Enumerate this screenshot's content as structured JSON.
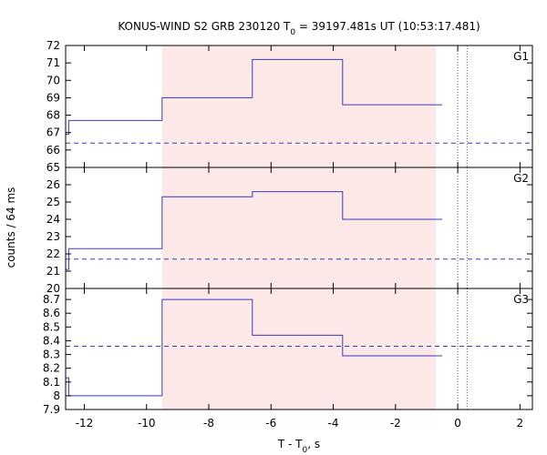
{
  "chart_data": {
    "type": "line",
    "title": "KONUS-WIND S2 GRB 230120 T",
    "title_sub": "0",
    "title_rest": " = 39197.481s UT (10:53:17.481)",
    "xlabel_main": "T - T",
    "xlabel_sub": "0",
    "xlabel_rest": ", s",
    "ylabel": "counts / 64 ms",
    "xlim": [
      -12.6,
      2.4
    ],
    "x_ticks": [
      -12,
      -10,
      -8,
      -6,
      -4,
      -2,
      0,
      2
    ],
    "x_tick_labels": [
      "-12",
      "-10",
      "-8",
      "-6",
      "-4",
      "-2",
      "0",
      "2"
    ],
    "shaded_region": [
      -9.5,
      -0.7
    ],
    "vertical_dotted_lines": [
      0,
      0.3
    ],
    "colors": {
      "line": "#3a3ab8",
      "shade": "#fde8e8",
      "dotted": "#555555"
    },
    "panels": [
      {
        "name": "G1",
        "label": "G1",
        "ylim": [
          65,
          72
        ],
        "y_ticks": [
          65,
          66,
          67,
          68,
          69,
          70,
          71,
          72
        ],
        "y_tick_labels": [
          "65",
          "66",
          "67",
          "68",
          "69",
          "70",
          "71",
          "72"
        ],
        "background": 66.4,
        "steps": [
          {
            "x0": -12.6,
            "x1": -12.5,
            "y": 66.9
          },
          {
            "x0": -12.5,
            "x1": -9.5,
            "y": 67.7
          },
          {
            "x0": -9.5,
            "x1": -6.6,
            "y": 69.0
          },
          {
            "x0": -6.6,
            "x1": -3.7,
            "y": 71.2
          },
          {
            "x0": -3.7,
            "x1": -0.5,
            "y": 68.6
          }
        ]
      },
      {
        "name": "G2",
        "label": "G2",
        "ylim": [
          20,
          27
        ],
        "y_ticks": [
          20,
          21,
          22,
          23,
          24,
          25,
          26
        ],
        "y_tick_labels": [
          "20",
          "21",
          "22",
          "23",
          "24",
          "25",
          "26"
        ],
        "background": 21.7,
        "steps": [
          {
            "x0": -12.6,
            "x1": -12.5,
            "y": 21.1
          },
          {
            "x0": -12.5,
            "x1": -9.5,
            "y": 22.3
          },
          {
            "x0": -9.5,
            "x1": -6.6,
            "y": 25.3
          },
          {
            "x0": -6.6,
            "x1": -3.7,
            "y": 25.6
          },
          {
            "x0": -3.7,
            "x1": -0.5,
            "y": 24.0
          }
        ]
      },
      {
        "name": "G3",
        "label": "G3",
        "ylim": [
          7.9,
          8.78
        ],
        "y_ticks": [
          7.9,
          8,
          8.1,
          8.2,
          8.3,
          8.4,
          8.5,
          8.6,
          8.7
        ],
        "y_tick_labels": [
          "7.9",
          "8",
          "8.1",
          "8.2",
          "8.3",
          "8.4",
          "8.5",
          "8.6",
          "8.7"
        ],
        "background": 8.36,
        "steps": [
          {
            "x0": -12.6,
            "x1": -12.5,
            "y": 8.13
          },
          {
            "x0": -12.5,
            "x1": -9.5,
            "y": 8.0
          },
          {
            "x0": -9.5,
            "x1": -6.6,
            "y": 8.7
          },
          {
            "x0": -6.6,
            "x1": -3.7,
            "y": 8.44
          },
          {
            "x0": -3.7,
            "x1": -0.5,
            "y": 8.29
          }
        ]
      }
    ]
  }
}
